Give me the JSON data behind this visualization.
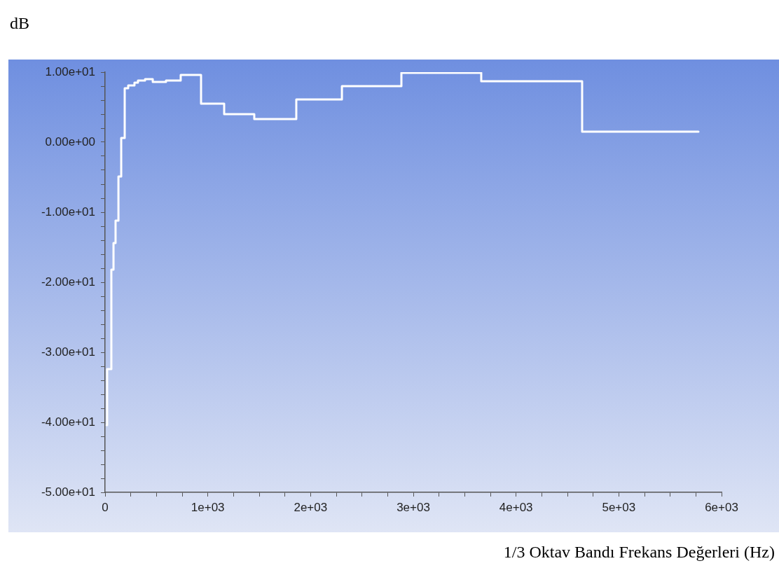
{
  "chart_data": {
    "type": "step",
    "ylabel": "dB",
    "xlabel": "1/3 Oktav Bandı Frekans Değerleri (Hz)",
    "x": [
      15,
      20,
      61,
      82,
      102,
      130,
      157,
      191,
      225,
      286,
      320,
      389,
      464,
      593,
      736,
      934,
      1159,
      1452,
      1861,
      2305,
      2884,
      3661,
      4643,
      5775
    ],
    "series": [
      {
        "color": "#ffffff",
        "values": [
          -40.4,
          -32.4,
          -18.2,
          -14.4,
          -11.2,
          -4.9,
          0.6,
          7.7,
          8.1,
          8.5,
          8.8,
          9.0,
          8.6,
          8.8,
          9.6,
          5.5,
          4.0,
          3.3,
          6.1,
          8.0,
          9.9,
          8.7,
          1.5,
          1.5
        ]
      }
    ],
    "xlim": [
      0,
      6000
    ],
    "xticks": [
      0,
      {
        "value": 250,
        "label": null
      },
      {
        "value": 500,
        "label": null
      },
      {
        "value": 750,
        "label": null
      },
      {
        "value": 1000,
        "label": "1e+03"
      },
      {
        "value": 1250,
        "label": null
      },
      {
        "value": 1500,
        "label": null
      },
      {
        "value": 1750,
        "label": null
      },
      {
        "value": 2000,
        "label": "2e+03"
      },
      {
        "value": 2250,
        "label": null
      },
      {
        "value": 2500,
        "label": null
      },
      {
        "value": 2750,
        "label": null
      },
      {
        "value": 3000,
        "label": "3e+03"
      },
      {
        "value": 3250,
        "label": null
      },
      {
        "value": 3500,
        "label": null
      },
      {
        "value": 3750,
        "label": null
      },
      {
        "value": 4000,
        "label": "4e+03"
      },
      {
        "value": 4250,
        "label": null
      },
      {
        "value": 4500,
        "label": null
      },
      {
        "value": 4750,
        "label": null
      },
      {
        "value": 5000,
        "label": "5e+03"
      },
      {
        "value": 5250,
        "label": null
      },
      {
        "value": 5500,
        "label": null
      },
      {
        "value": 5750,
        "label": null
      },
      {
        "value": 6000,
        "label": "6e+03"
      }
    ],
    "ylim": [
      -50,
      10
    ],
    "yticks": [
      {
        "value": -50,
        "label": "-5.00e+01"
      },
      {
        "value": -48,
        "label": null
      },
      {
        "value": -46,
        "label": null
      },
      {
        "value": -44,
        "label": null
      },
      {
        "value": -42,
        "label": null
      },
      {
        "value": -40,
        "label": "-4.00e+01"
      },
      {
        "value": -38,
        "label": null
      },
      {
        "value": -36,
        "label": null
      },
      {
        "value": -34,
        "label": null
      },
      {
        "value": -32,
        "label": null
      },
      {
        "value": -30,
        "label": "-3.00e+01"
      },
      {
        "value": -28,
        "label": null
      },
      {
        "value": -26,
        "label": null
      },
      {
        "value": -24,
        "label": null
      },
      {
        "value": -22,
        "label": null
      },
      {
        "value": -20,
        "label": "-2.00e+01"
      },
      {
        "value": -18,
        "label": null
      },
      {
        "value": -16,
        "label": null
      },
      {
        "value": -14,
        "label": null
      },
      {
        "value": -12,
        "label": null
      },
      {
        "value": -10,
        "label": "-1.00e+01"
      },
      {
        "value": -8,
        "label": null
      },
      {
        "value": -6,
        "label": null
      },
      {
        "value": -4,
        "label": null
      },
      {
        "value": -2,
        "label": null
      },
      {
        "value": 0,
        "label": "0.00e+00"
      },
      {
        "value": 2,
        "label": null
      },
      {
        "value": 4,
        "label": null
      },
      {
        "value": 6,
        "label": null
      },
      {
        "value": 8,
        "label": null
      },
      {
        "value": 10,
        "label": "1.00e+01"
      }
    ],
    "grid": false,
    "legend": false,
    "marker": "none",
    "line_style": "solid"
  }
}
